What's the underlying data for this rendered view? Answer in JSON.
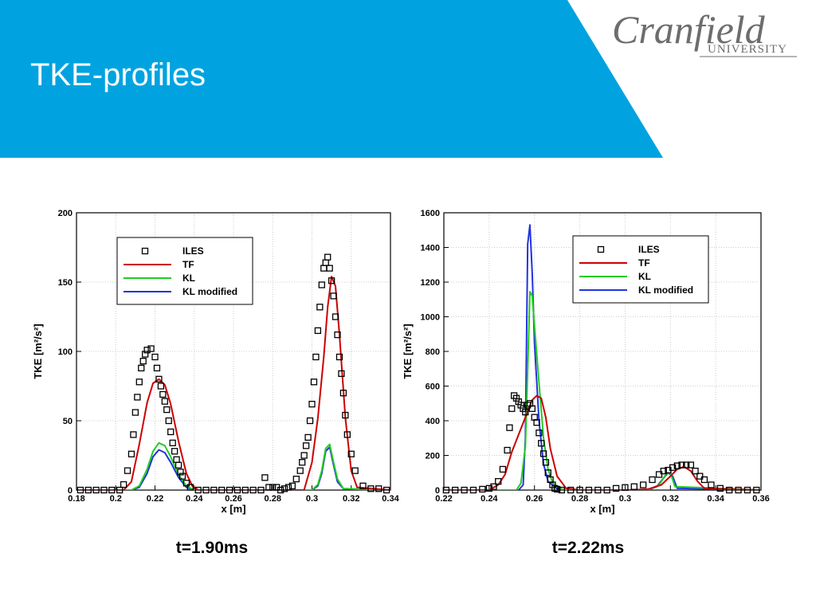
{
  "slide": {
    "title": "TKE-profiles",
    "logo_main": "Cranfield",
    "logo_sub": "UNIVERSITY"
  },
  "colors": {
    "header_blue": "#00a3e0",
    "ILES": "#000000",
    "TF": "#cc0000",
    "KL": "#22cc22",
    "KL_modified": "#2233dd"
  },
  "chart_data": [
    {
      "type": "line",
      "caption": "t=1.90ms",
      "xlabel": "x [m]",
      "ylabel": "TKE  [m²/s²]",
      "xlim": [
        0.18,
        0.34
      ],
      "ylim": [
        0,
        200
      ],
      "xticks": [
        0.18,
        0.2,
        0.22,
        0.24,
        0.26,
        0.28,
        0.3,
        0.32,
        0.34
      ],
      "xtick_labels": [
        "0.18",
        "0.2",
        "0.22",
        "0.24",
        "0.26",
        "0.28",
        "0.3",
        "0.32",
        "0.34"
      ],
      "yticks": [
        0,
        50,
        100,
        150,
        200
      ],
      "ytick_labels": [
        "0",
        "50",
        "100",
        "150",
        "200"
      ],
      "grid": true,
      "legend_position": "top-right",
      "series": [
        {
          "name": "ILES",
          "style": "markers",
          "x": [
            0.182,
            0.186,
            0.19,
            0.194,
            0.198,
            0.202,
            0.204,
            0.206,
            0.208,
            0.209,
            0.21,
            0.211,
            0.212,
            0.213,
            0.214,
            0.215,
            0.216,
            0.218,
            0.22,
            0.221,
            0.222,
            0.223,
            0.224,
            0.225,
            0.226,
            0.227,
            0.228,
            0.229,
            0.23,
            0.231,
            0.232,
            0.233,
            0.234,
            0.236,
            0.238,
            0.242,
            0.246,
            0.25,
            0.254,
            0.258,
            0.262,
            0.266,
            0.27,
            0.274,
            0.276,
            0.278,
            0.28,
            0.282,
            0.284,
            0.286,
            0.288,
            0.29,
            0.292,
            0.294,
            0.295,
            0.296,
            0.297,
            0.298,
            0.299,
            0.3,
            0.301,
            0.302,
            0.303,
            0.304,
            0.305,
            0.306,
            0.307,
            0.308,
            0.309,
            0.31,
            0.311,
            0.312,
            0.313,
            0.314,
            0.315,
            0.316,
            0.317,
            0.318,
            0.32,
            0.322,
            0.326,
            0.33,
            0.334,
            0.338
          ],
          "y": [
            0,
            0,
            0,
            0,
            0,
            0,
            4,
            14,
            26,
            40,
            56,
            67,
            78,
            88,
            93,
            98,
            101,
            102,
            96,
            88,
            80,
            75,
            69,
            64,
            58,
            50,
            42,
            34,
            28,
            22,
            18,
            13,
            10,
            5,
            2,
            0,
            0,
            0,
            0,
            0,
            0,
            0,
            0,
            0,
            9,
            2,
            2,
            2,
            0,
            1,
            2,
            3,
            8,
            14,
            20,
            25,
            32,
            38,
            50,
            62,
            78,
            96,
            115,
            132,
            148,
            160,
            164,
            168,
            160,
            151,
            140,
            125,
            112,
            96,
            84,
            70,
            54,
            40,
            26,
            14,
            3,
            1,
            1,
            0
          ]
        },
        {
          "name": "TF",
          "style": "line",
          "x": [
            0.18,
            0.204,
            0.208,
            0.212,
            0.216,
            0.219,
            0.222,
            0.225,
            0.228,
            0.232,
            0.236,
            0.239,
            0.242,
            0.296,
            0.3,
            0.303,
            0.306,
            0.308,
            0.31,
            0.312,
            0.314,
            0.317,
            0.32,
            0.323,
            0.34
          ],
          "y": [
            0,
            0,
            6,
            33,
            63,
            77,
            80,
            76,
            62,
            35,
            12,
            3,
            0,
            0,
            20,
            52,
            96,
            132,
            154,
            147,
            112,
            52,
            14,
            2,
            0
          ]
        },
        {
          "name": "KL",
          "style": "line",
          "x": [
            0.18,
            0.208,
            0.212,
            0.216,
            0.219,
            0.222,
            0.225,
            0.228,
            0.232,
            0.236,
            0.24,
            0.3,
            0.303,
            0.305,
            0.307,
            0.309,
            0.311,
            0.313,
            0.316,
            0.34
          ],
          "y": [
            0,
            0,
            3,
            15,
            28,
            34,
            32,
            24,
            11,
            3,
            0,
            0,
            4,
            14,
            30,
            33,
            20,
            8,
            1,
            0
          ]
        },
        {
          "name": "KL modified",
          "style": "line",
          "x": [
            0.18,
            0.208,
            0.212,
            0.216,
            0.219,
            0.222,
            0.225,
            0.228,
            0.232,
            0.236,
            0.24,
            0.3,
            0.303,
            0.305,
            0.307,
            0.309,
            0.311,
            0.313,
            0.316,
            0.34
          ],
          "y": [
            0,
            0,
            2,
            12,
            24,
            29,
            27,
            20,
            9,
            2,
            0,
            0,
            3,
            12,
            28,
            31,
            18,
            6,
            1,
            0
          ]
        }
      ]
    },
    {
      "type": "line",
      "caption": "t=2.22ms",
      "xlabel": "x [m]",
      "ylabel": "TKE  [m²/s²]",
      "xlim": [
        0.22,
        0.36
      ],
      "ylim": [
        0,
        1600
      ],
      "xticks": [
        0.22,
        0.24,
        0.26,
        0.28,
        0.3,
        0.32,
        0.34,
        0.36
      ],
      "xtick_labels": [
        "0.22",
        "0.24",
        "0.26",
        "0.28",
        "0.3",
        "0.32",
        "0.34",
        "0.36"
      ],
      "yticks": [
        0,
        200,
        400,
        600,
        800,
        1000,
        1200,
        1400,
        1600
      ],
      "ytick_labels": [
        "0",
        "200",
        "400",
        "600",
        "800",
        "1000",
        "1200",
        "1400",
        "1600"
      ],
      "grid": true,
      "legend_position": "top-right",
      "series": [
        {
          "name": "ILES",
          "style": "markers",
          "x": [
            0.221,
            0.225,
            0.229,
            0.233,
            0.237,
            0.24,
            0.242,
            0.244,
            0.246,
            0.248,
            0.249,
            0.25,
            0.251,
            0.252,
            0.253,
            0.254,
            0.255,
            0.256,
            0.257,
            0.258,
            0.259,
            0.26,
            0.261,
            0.262,
            0.263,
            0.264,
            0.265,
            0.266,
            0.267,
            0.268,
            0.269,
            0.27,
            0.272,
            0.276,
            0.28,
            0.284,
            0.288,
            0.292,
            0.296,
            0.3,
            0.304,
            0.308,
            0.312,
            0.315,
            0.317,
            0.319,
            0.321,
            0.323,
            0.325,
            0.327,
            0.329,
            0.331,
            0.333,
            0.335,
            0.338,
            0.342,
            0.346,
            0.35,
            0.354,
            0.358
          ],
          "y": [
            0,
            0,
            0,
            0,
            5,
            10,
            20,
            50,
            120,
            230,
            360,
            470,
            545,
            530,
            510,
            490,
            470,
            450,
            490,
            500,
            470,
            420,
            390,
            330,
            270,
            210,
            160,
            100,
            60,
            30,
            10,
            5,
            0,
            0,
            0,
            0,
            0,
            0,
            10,
            15,
            20,
            30,
            60,
            90,
            110,
            115,
            130,
            140,
            145,
            145,
            145,
            110,
            80,
            60,
            30,
            10,
            0,
            0,
            0,
            0
          ]
        },
        {
          "name": "TF",
          "style": "line",
          "x": [
            0.22,
            0.24,
            0.244,
            0.247,
            0.25,
            0.253,
            0.256,
            0.259,
            0.261,
            0.263,
            0.265,
            0.267,
            0.27,
            0.274,
            0.28,
            0.3,
            0.31,
            0.316,
            0.32,
            0.323,
            0.326,
            0.329,
            0.332,
            0.335,
            0.36
          ],
          "y": [
            0,
            0,
            30,
            90,
            220,
            320,
            420,
            520,
            545,
            530,
            420,
            240,
            80,
            10,
            0,
            0,
            5,
            30,
            80,
            120,
            135,
            110,
            50,
            10,
            0
          ]
        },
        {
          "name": "KL",
          "style": "line",
          "x": [
            0.22,
            0.252,
            0.254,
            0.256,
            0.257,
            0.258,
            0.259,
            0.26,
            0.262,
            0.264,
            0.266,
            0.268,
            0.272,
            0.276,
            0.31,
            0.315,
            0.318,
            0.32,
            0.322,
            0.36
          ],
          "y": [
            0,
            0,
            40,
            250,
            700,
            1145,
            1120,
            950,
            620,
            300,
            120,
            40,
            5,
            0,
            0,
            30,
            90,
            100,
            20,
            0
          ]
        },
        {
          "name": "KL modified",
          "style": "line",
          "x": [
            0.22,
            0.253,
            0.255,
            0.256,
            0.257,
            0.258,
            0.259,
            0.26,
            0.262,
            0.264,
            0.266,
            0.27,
            0.274,
            0.31,
            0.314,
            0.317,
            0.319,
            0.321,
            0.323,
            0.36
          ],
          "y": [
            0,
            0,
            30,
            300,
            1420,
            1530,
            1250,
            850,
            400,
            150,
            50,
            8,
            0,
            0,
            20,
            70,
            100,
            80,
            10,
            0
          ]
        }
      ]
    }
  ]
}
